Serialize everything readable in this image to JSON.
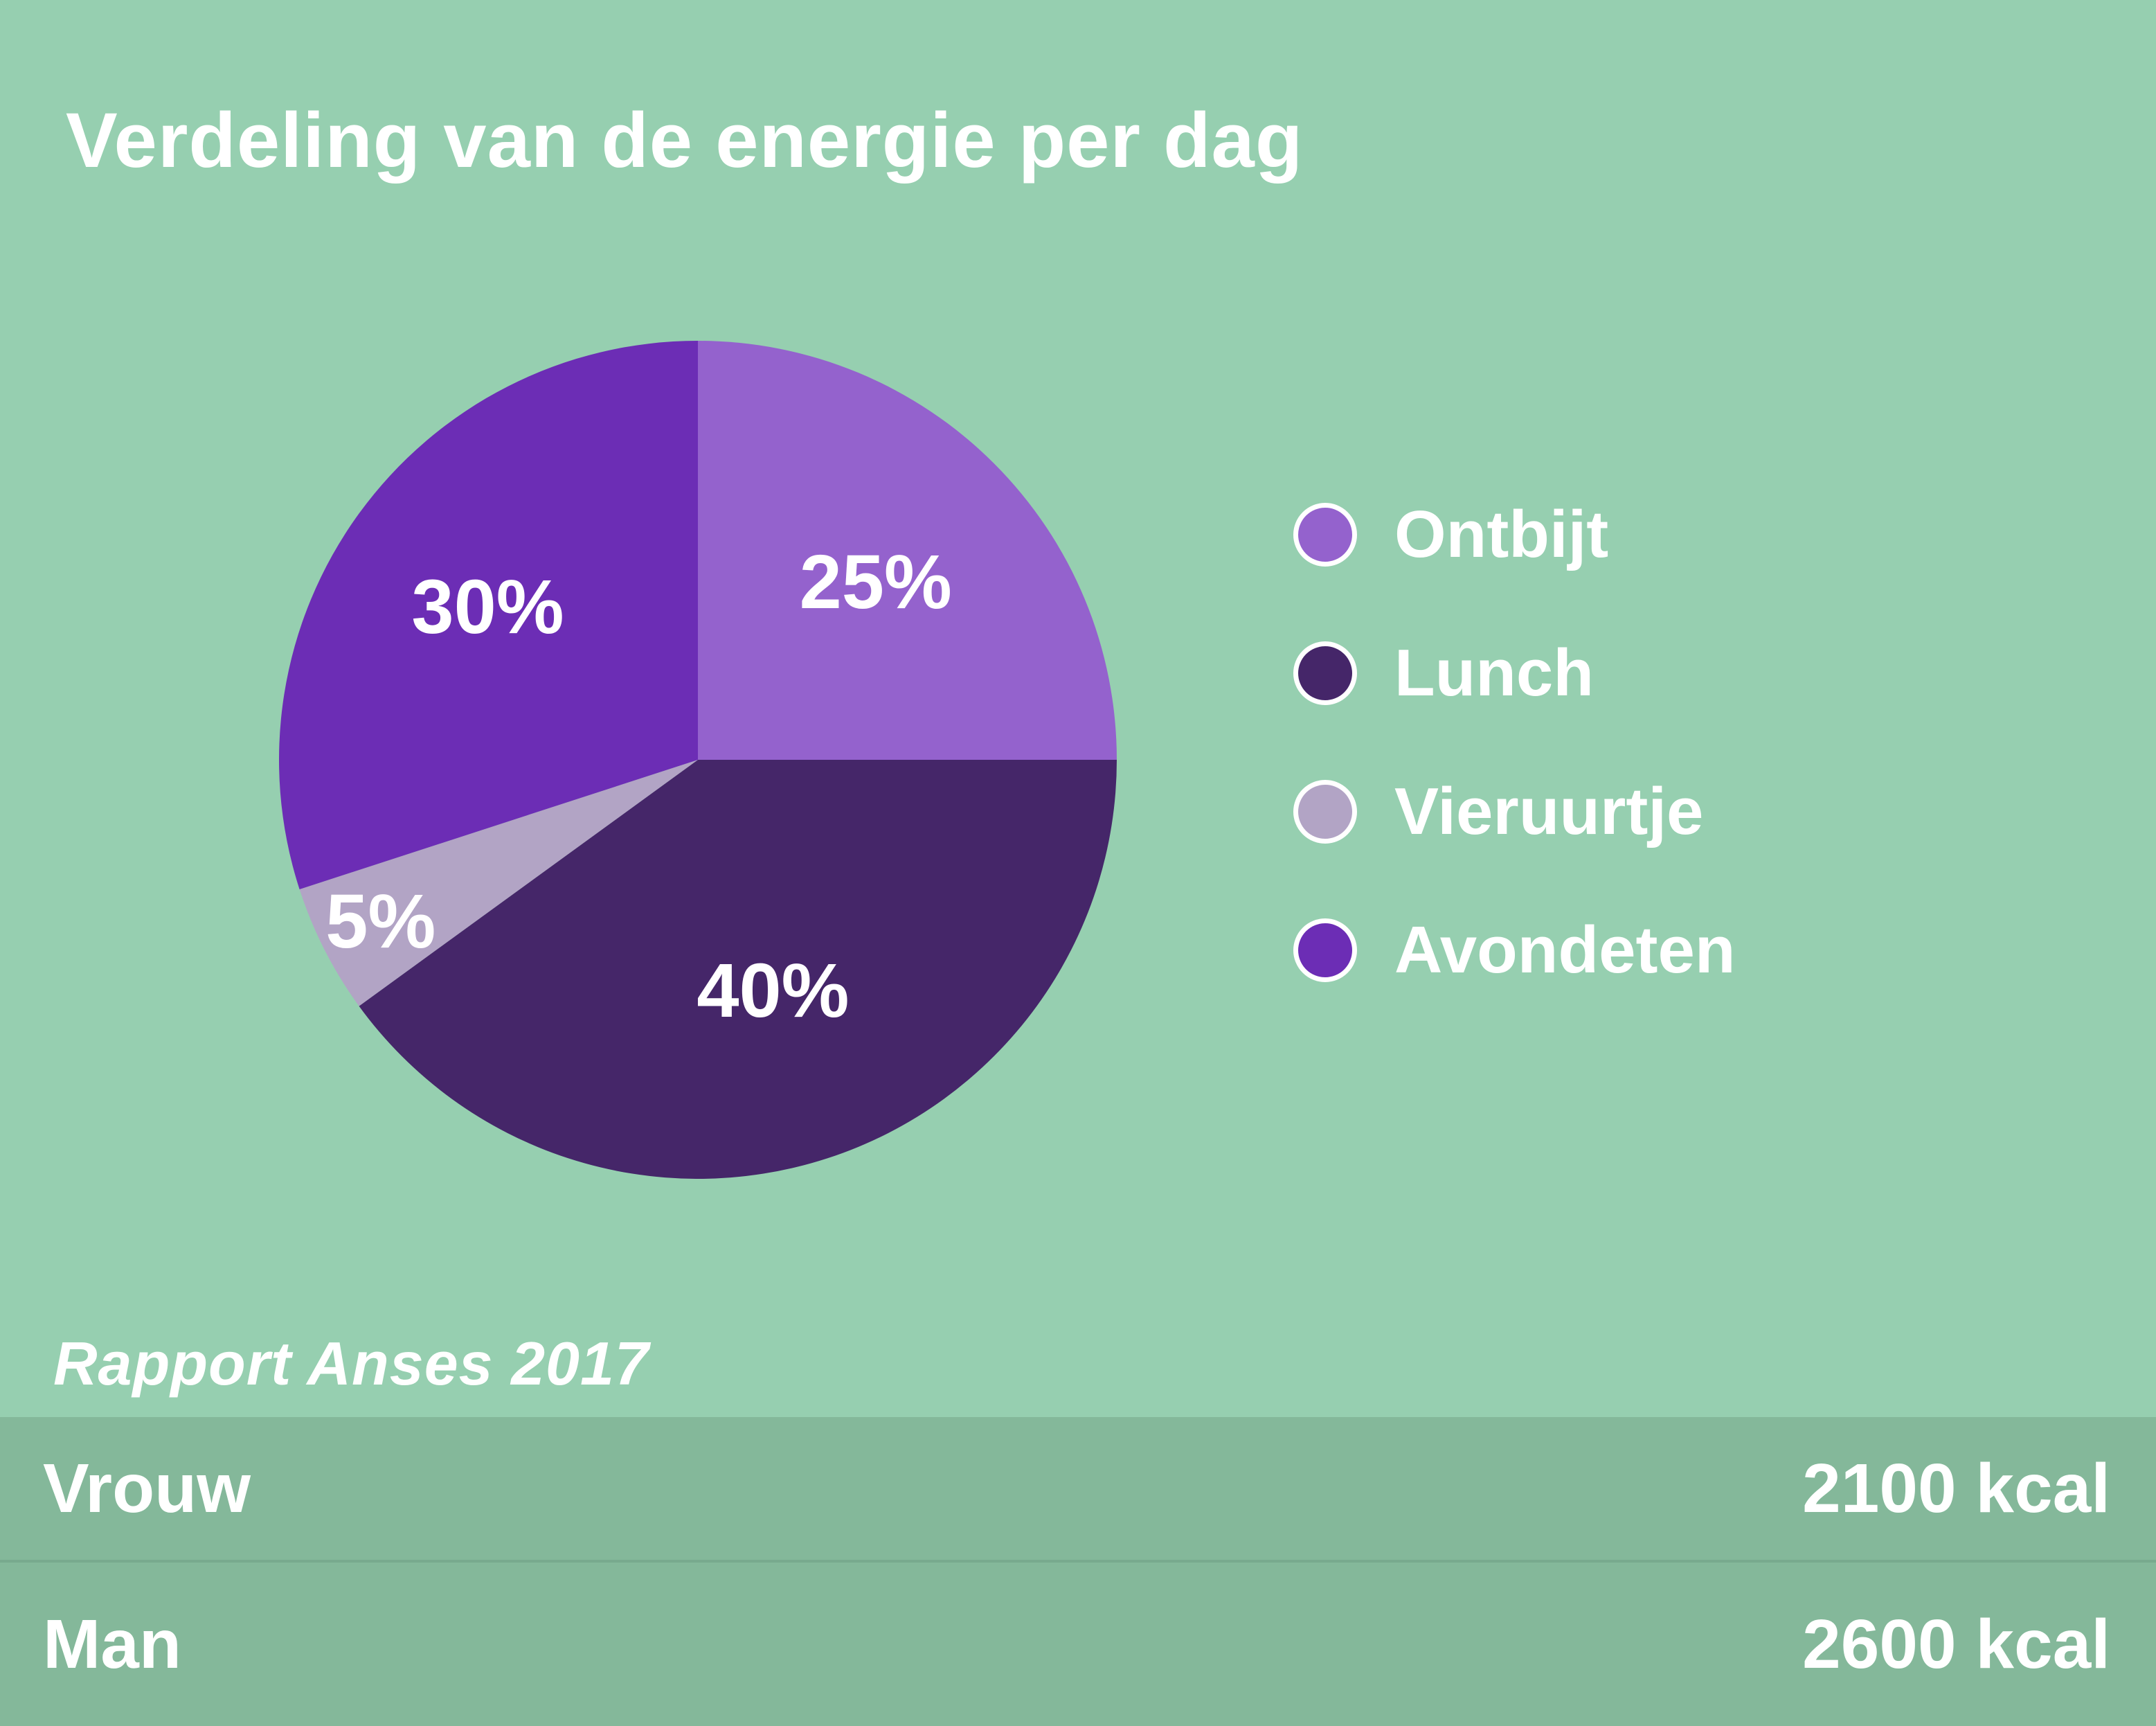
{
  "page": {
    "background_color": "#96cfb0",
    "band_color": "#84b89a",
    "divider_color": "#78aa8e",
    "text_color": "#ffffff"
  },
  "title": "Verdeling van de energie per dag",
  "source_note": "Rapport Anses 2017",
  "chart_data": {
    "type": "pie",
    "title": "Verdeling van de energie per dag",
    "categories": [
      "Ontbijt",
      "Lunch",
      "Vieruurtje",
      "Avondeten"
    ],
    "values": [
      25,
      40,
      5,
      30
    ],
    "unit": "%",
    "slice_labels": [
      "25%",
      "40%",
      "5%",
      "30%"
    ],
    "colors": [
      "#9462cd",
      "#452669",
      "#b2a4c5",
      "#6c2db5"
    ],
    "start_angle_deg": 0,
    "direction": "clockwise",
    "legend_position": "right",
    "label_color": "#ffffff",
    "label_radius_factors": [
      0.6,
      0.58,
      0.85,
      0.62
    ],
    "source": "Rapport Anses 2017"
  },
  "legend": {
    "items": [
      {
        "label": "Ontbijt",
        "color": "#9462cd"
      },
      {
        "label": "Lunch",
        "color": "#452669"
      },
      {
        "label": "Vieruurtje",
        "color": "#b2a4c5"
      },
      {
        "label": "Avondeten",
        "color": "#6c2db5"
      }
    ]
  },
  "energy_table": {
    "rows": [
      {
        "label": "Vrouw",
        "value": "2100 kcal"
      },
      {
        "label": "Man",
        "value": "2600 kcal"
      }
    ]
  }
}
